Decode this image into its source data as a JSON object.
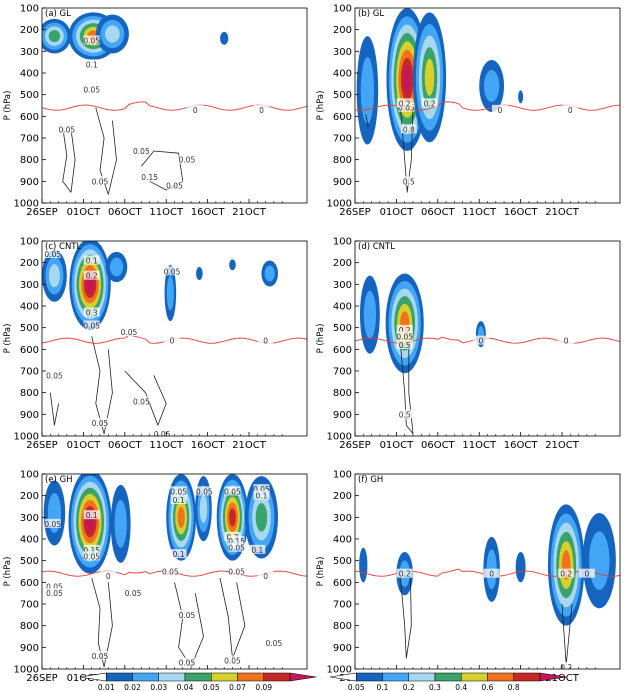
{
  "chart_data": {
    "type": "contour",
    "y_tick_labels": [
      "100",
      "200",
      "300",
      "400",
      "500",
      "600",
      "700",
      "800",
      "900",
      "1000"
    ],
    "x_tick_labels": [
      "26SEP",
      "01OCT",
      "06OCT",
      "11OCT",
      "16OCT",
      "21OCT"
    ],
    "ylabel": "P (hPa)",
    "ylim": [
      100,
      1000
    ],
    "panels": [
      {
        "label": "(a) GL",
        "side": "left",
        "blobs": [
          {
            "day": 1.5,
            "p": 230,
            "level": 4,
            "dx": 2.0,
            "dp": 80
          },
          {
            "day": 6.2,
            "p": 230,
            "level": 6,
            "dx": 3.0,
            "dp": 110
          },
          {
            "day": 8.5,
            "p": 220,
            "level": 3,
            "dx": 2.0,
            "dp": 90
          },
          {
            "day": 22.0,
            "p": 240,
            "level": 1,
            "dx": 0.5,
            "dp": 30
          }
        ],
        "labels": [
          {
            "day": 6.0,
            "p": 250,
            "text": "0.05"
          },
          {
            "day": 6.0,
            "p": 360,
            "text": "0.1"
          },
          {
            "day": 6.0,
            "p": 475,
            "text": "0.05"
          },
          {
            "day": 3.0,
            "p": 660,
            "text": "0.05"
          },
          {
            "day": 12.0,
            "p": 760,
            "text": "0.05"
          },
          {
            "day": 13.0,
            "p": 880,
            "text": "0.15"
          },
          {
            "day": 17.5,
            "p": 800,
            "text": "0.05"
          },
          {
            "day": 16.0,
            "p": 920,
            "text": "0.05"
          },
          {
            "day": 7.0,
            "p": 900,
            "text": "0.05"
          },
          {
            "day": 18.5,
            "p": 570,
            "text": "0"
          },
          {
            "day": 26.5,
            "p": 570,
            "text": "0"
          }
        ],
        "open_contours": [
          [
            {
              "day": 2.5,
              "p": 650
            },
            {
              "day": 3.0,
              "p": 780
            },
            {
              "day": 2.5,
              "p": 900
            },
            {
              "day": 3.5,
              "p": 950
            },
            {
              "day": 4.0,
              "p": 800
            },
            {
              "day": 3.5,
              "p": 660
            }
          ],
          [
            {
              "day": 6.5,
              "p": 560
            },
            {
              "day": 7.5,
              "p": 700
            },
            {
              "day": 7.0,
              "p": 850
            },
            {
              "day": 8.0,
              "p": 960
            },
            {
              "day": 9.0,
              "p": 800
            },
            {
              "day": 8.5,
              "p": 620
            }
          ],
          [
            {
              "day": 12.0,
              "p": 830
            },
            {
              "day": 13.5,
              "p": 760
            },
            {
              "day": 16.5,
              "p": 770
            },
            {
              "day": 17.0,
              "p": 900
            },
            {
              "day": 15.0,
              "p": 940
            },
            {
              "day": 13.0,
              "p": 900
            }
          ]
        ],
        "red_line_p": 560
      },
      {
        "label": "(b) GL",
        "side": "right",
        "blobs": [
          {
            "day": 1.5,
            "p": 480,
            "level": 2,
            "dx": 1.3,
            "dp": 250
          },
          {
            "day": 6.3,
            "p": 430,
            "level": 8,
            "dx": 2.5,
            "dp": 330
          },
          {
            "day": 9.0,
            "p": 420,
            "level": 5,
            "dx": 2.0,
            "dp": 300
          },
          {
            "day": 16.5,
            "p": 460,
            "level": 2,
            "dx": 1.5,
            "dp": 120
          },
          {
            "day": 20.0,
            "p": 510,
            "level": 1,
            "dx": 0.3,
            "dp": 30
          }
        ],
        "labels": [
          {
            "day": 6.2,
            "p": 560,
            "text": "0.05"
          },
          {
            "day": 6.0,
            "p": 540,
            "text": "0.2"
          },
          {
            "day": 9.0,
            "p": 540,
            "text": "0.2"
          },
          {
            "day": 6.5,
            "p": 660,
            "text": "0.8"
          },
          {
            "day": 6.5,
            "p": 900,
            "text": "0.5"
          },
          {
            "day": 17.5,
            "p": 570,
            "text": "0"
          },
          {
            "day": 26.0,
            "p": 570,
            "text": "0"
          }
        ],
        "open_contours": [
          [
            {
              "day": 5.5,
              "p": 560
            },
            {
              "day": 6.0,
              "p": 800
            },
            {
              "day": 6.3,
              "p": 950
            },
            {
              "day": 6.8,
              "p": 800
            },
            {
              "day": 7.0,
              "p": 560
            }
          ],
          [
            {
              "day": 1.3,
              "p": 590
            },
            {
              "day": 1.6,
              "p": 650
            }
          ]
        ],
        "red_line_p": 560
      },
      {
        "label": "(c) CNTL",
        "side": "left",
        "blobs": [
          {
            "day": 1.5,
            "p": 260,
            "level": 3,
            "dx": 1.5,
            "dp": 120
          },
          {
            "day": 5.8,
            "p": 300,
            "level": 8,
            "dx": 2.5,
            "dp": 210
          },
          {
            "day": 9.0,
            "p": 220,
            "level": 2,
            "dx": 1.3,
            "dp": 70
          },
          {
            "day": 15.5,
            "p": 340,
            "level": 2,
            "dx": 0.7,
            "dp": 130
          },
          {
            "day": 19.0,
            "p": 250,
            "level": 1,
            "dx": 0.4,
            "dp": 30
          },
          {
            "day": 23.0,
            "p": 210,
            "level": 1,
            "dx": 0.4,
            "dp": 25
          },
          {
            "day": 27.5,
            "p": 250,
            "level": 2,
            "dx": 1.0,
            "dp": 60
          }
        ],
        "labels": [
          {
            "day": 1.3,
            "p": 160,
            "text": "0.05"
          },
          {
            "day": 6.0,
            "p": 260,
            "text": "0.2"
          },
          {
            "day": 6.0,
            "p": 190,
            "text": "0.1"
          },
          {
            "day": 6.0,
            "p": 430,
            "text": "0.3"
          },
          {
            "day": 6.0,
            "p": 490,
            "text": "0.05"
          },
          {
            "day": 15.7,
            "p": 240,
            "text": "0.05"
          },
          {
            "day": 10.5,
            "p": 520,
            "text": "0.05"
          },
          {
            "day": 1.5,
            "p": 720,
            "text": "0.05"
          },
          {
            "day": 7.0,
            "p": 940,
            "text": "0.05"
          },
          {
            "day": 12.0,
            "p": 840,
            "text": "0.05"
          },
          {
            "day": 14.5,
            "p": 990,
            "text": "0.05"
          },
          {
            "day": 15.7,
            "p": 560,
            "text": "0"
          },
          {
            "day": 27.0,
            "p": 560,
            "text": "0"
          }
        ],
        "open_contours": [
          [
            {
              "day": 6.0,
              "p": 540
            },
            {
              "day": 7.0,
              "p": 700
            },
            {
              "day": 6.5,
              "p": 850
            },
            {
              "day": 7.5,
              "p": 990
            },
            {
              "day": 8.5,
              "p": 800
            },
            {
              "day": 8.0,
              "p": 600
            }
          ],
          [
            {
              "day": 1.0,
              "p": 800
            },
            {
              "day": 1.5,
              "p": 950
            },
            {
              "day": 2.0,
              "p": 850
            }
          ],
          [
            {
              "day": 10.0,
              "p": 700
            },
            {
              "day": 12.5,
              "p": 800
            },
            {
              "day": 14.0,
              "p": 950
            },
            {
              "day": 15.0,
              "p": 850
            },
            {
              "day": 13.5,
              "p": 720
            }
          ]
        ],
        "red_line_p": 560
      },
      {
        "label": "(d) CNTL",
        "side": "right",
        "blobs": [
          {
            "day": 1.8,
            "p": 440,
            "level": 2,
            "dx": 1.2,
            "dp": 180
          },
          {
            "day": 6.0,
            "p": 480,
            "level": 6,
            "dx": 2.3,
            "dp": 230
          },
          {
            "day": 15.2,
            "p": 530,
            "level": 2,
            "dx": 0.6,
            "dp": 60
          }
        ],
        "labels": [
          {
            "day": 6.0,
            "p": 510,
            "text": "0.2"
          },
          {
            "day": 6.0,
            "p": 540,
            "text": "0.05"
          },
          {
            "day": 6.0,
            "p": 580,
            "text": "0.5"
          },
          {
            "day": 6.0,
            "p": 900,
            "text": "0.5"
          },
          {
            "day": 15.2,
            "p": 560,
            "text": "0"
          },
          {
            "day": 25.5,
            "p": 560,
            "text": "0"
          }
        ],
        "open_contours": [
          [
            {
              "day": 5.5,
              "p": 580
            },
            {
              "day": 6.0,
              "p": 800
            },
            {
              "day": 6.2,
              "p": 950
            },
            {
              "day": 7.0,
              "p": 990
            },
            {
              "day": 6.5,
              "p": 800
            },
            {
              "day": 6.5,
              "p": 580
            }
          ]
        ],
        "red_line_p": 560
      },
      {
        "label": "(e) GH",
        "side": "left",
        "blobs": [
          {
            "day": 1.5,
            "p": 280,
            "level": 2,
            "dx": 1.3,
            "dp": 150
          },
          {
            "day": 5.8,
            "p": 320,
            "level": 8,
            "dx": 2.6,
            "dp": 240
          },
          {
            "day": 9.5,
            "p": 330,
            "level": 2,
            "dx": 1.2,
            "dp": 180
          },
          {
            "day": 16.8,
            "p": 300,
            "level": 6,
            "dx": 1.8,
            "dp": 200
          },
          {
            "day": 19.5,
            "p": 260,
            "level": 3,
            "dx": 1.0,
            "dp": 150
          },
          {
            "day": 23.0,
            "p": 300,
            "level": 7,
            "dx": 1.9,
            "dp": 200
          },
          {
            "day": 26.5,
            "p": 300,
            "level": 4,
            "dx": 2.0,
            "dp": 190
          }
        ],
        "labels": [
          {
            "day": 1.3,
            "p": 330,
            "text": "0.05"
          },
          {
            "day": 6.0,
            "p": 290,
            "text": "0.1"
          },
          {
            "day": 6.0,
            "p": 450,
            "text": "0.15"
          },
          {
            "day": 6.0,
            "p": 480,
            "text": "0.05"
          },
          {
            "day": 16.5,
            "p": 180,
            "text": "0.05"
          },
          {
            "day": 16.5,
            "p": 220,
            "text": "0.1"
          },
          {
            "day": 16.5,
            "p": 470,
            "text": "0.1"
          },
          {
            "day": 19.6,
            "p": 180,
            "text": "0.05"
          },
          {
            "day": 23.0,
            "p": 180,
            "text": "0.05"
          },
          {
            "day": 23.0,
            "p": 390,
            "text": "0.2"
          },
          {
            "day": 23.5,
            "p": 410,
            "text": "0.15"
          },
          {
            "day": 23.5,
            "p": 440,
            "text": "0.05"
          },
          {
            "day": 26.5,
            "p": 170,
            "text": "0.05"
          },
          {
            "day": 26.5,
            "p": 200,
            "text": "0.1"
          },
          {
            "day": 26.0,
            "p": 450,
            "text": "0.1"
          },
          {
            "day": 23.5,
            "p": 550,
            "text": "0.05"
          },
          {
            "day": 15.5,
            "p": 550,
            "text": "0.05"
          },
          {
            "day": 1.5,
            "p": 620,
            "text": "0.05"
          },
          {
            "day": 1.5,
            "p": 650,
            "text": "0.05"
          },
          {
            "day": 11.0,
            "p": 650,
            "text": "0.05"
          },
          {
            "day": 17.5,
            "p": 750,
            "text": "0.05"
          },
          {
            "day": 17.5,
            "p": 970,
            "text": "0.05"
          },
          {
            "day": 7.0,
            "p": 940,
            "text": "0.05"
          },
          {
            "day": 23.0,
            "p": 960,
            "text": "0.05"
          },
          {
            "day": 28.0,
            "p": 880,
            "text": "0.05"
          },
          {
            "day": 8.0,
            "p": 570,
            "text": "0"
          },
          {
            "day": 27.0,
            "p": 570,
            "text": "0"
          }
        ],
        "open_contours": [
          [
            {
              "day": 6.0,
              "p": 580
            },
            {
              "day": 7.0,
              "p": 720
            },
            {
              "day": 6.8,
              "p": 880
            },
            {
              "day": 7.5,
              "p": 990
            },
            {
              "day": 8.5,
              "p": 800
            },
            {
              "day": 8.0,
              "p": 600
            }
          ],
          [
            {
              "day": 16.0,
              "p": 600
            },
            {
              "day": 17.0,
              "p": 760
            },
            {
              "day": 16.5,
              "p": 900
            },
            {
              "day": 18.0,
              "p": 990
            },
            {
              "day": 19.5,
              "p": 850
            },
            {
              "day": 18.5,
              "p": 650
            }
          ],
          [
            {
              "day": 21.5,
              "p": 580
            },
            {
              "day": 22.5,
              "p": 760
            },
            {
              "day": 23.0,
              "p": 950
            },
            {
              "day": 24.5,
              "p": 800
            },
            {
              "day": 23.5,
              "p": 600
            }
          ]
        ],
        "red_line_p": 560
      },
      {
        "label": "(f) GH",
        "side": "right",
        "blobs": [
          {
            "day": 1.0,
            "p": 520,
            "level": 1,
            "dx": 0.5,
            "dp": 80
          },
          {
            "day": 6.0,
            "p": 560,
            "level": 2,
            "dx": 1.0,
            "dp": 100
          },
          {
            "day": 16.5,
            "p": 540,
            "level": 2,
            "dx": 1.0,
            "dp": 150
          },
          {
            "day": 20.0,
            "p": 530,
            "level": 1,
            "dx": 0.6,
            "dp": 70
          },
          {
            "day": 25.5,
            "p": 520,
            "level": 6,
            "dx": 2.2,
            "dp": 280
          },
          {
            "day": 29.5,
            "p": 500,
            "level": 2,
            "dx": 2.0,
            "dp": 220
          }
        ],
        "labels": [
          {
            "day": 6.0,
            "p": 560,
            "text": "0.2"
          },
          {
            "day": 25.5,
            "p": 560,
            "text": "0.2"
          },
          {
            "day": 25.5,
            "p": 990,
            "text": "0.2"
          },
          {
            "day": 16.5,
            "p": 560,
            "text": "0"
          },
          {
            "day": 28.0,
            "p": 560,
            "text": "0"
          }
        ],
        "open_contours": [
          [
            {
              "day": 5.5,
              "p": 580
            },
            {
              "day": 6.0,
              "p": 800
            },
            {
              "day": 6.2,
              "p": 950
            },
            {
              "day": 6.8,
              "p": 800
            },
            {
              "day": 6.7,
              "p": 580
            }
          ],
          [
            {
              "day": 25.0,
              "p": 700
            },
            {
              "day": 25.5,
              "p": 980
            },
            {
              "day": 26.2,
              "p": 700
            }
          ]
        ],
        "red_line_p": 560
      }
    ],
    "colorbars": [
      {
        "side": "left",
        "labels": [
          "0.01",
          "0.02",
          "0.03",
          "0.04",
          "0.05",
          "0.07",
          "0.09"
        ]
      },
      {
        "side": "right",
        "labels": [
          "0.05",
          "0.1",
          "0.2",
          "0.3",
          "0.4",
          "0.6",
          "0.8"
        ]
      }
    ],
    "colors": {
      "levels": [
        "#1565c0",
        "#42a5f5",
        "#a8d8f0",
        "#39a36b",
        "#d6d02a",
        "#f0721e",
        "#c62828",
        "#c2185b"
      ],
      "red_line": "#e53935",
      "open_contour": "#222222",
      "purple_contour": "#8a2be2"
    }
  }
}
